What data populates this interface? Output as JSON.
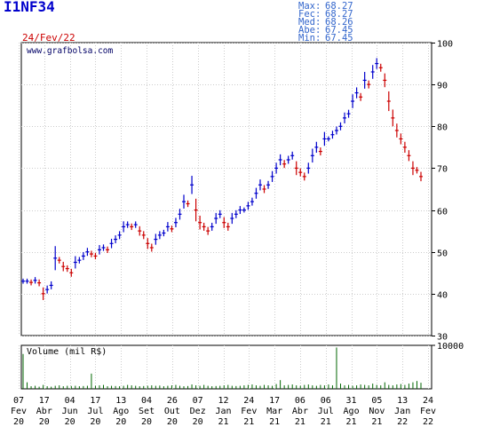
{
  "ticker": "I1NF34",
  "date": "24/Fev/22",
  "stats": [
    {
      "label": "Max:",
      "value": "68.27"
    },
    {
      "label": "Fec:",
      "value": "68.27"
    },
    {
      "label": "Med:",
      "value": "68.26"
    },
    {
      "label": "Abe:",
      "value": "67.45"
    },
    {
      "label": "Min:",
      "value": "67.45"
    }
  ],
  "watermark": "www.grafbolsa.com",
  "volume_label": "Volume (mil R$)",
  "colors": {
    "up": "#0000cc",
    "down": "#cc0000",
    "stats": "#3366cc",
    "grid": "#cccccc",
    "volume": "#006600"
  },
  "chart_data": [
    {
      "type": "ohlc",
      "title": "I1NF34",
      "ylim": [
        30,
        100
      ],
      "yticks": [
        30,
        40,
        50,
        60,
        70,
        80,
        90,
        100
      ],
      "grid": true,
      "x_ticks": [
        {
          "day": "07",
          "mon": "Fev",
          "yr": "20"
        },
        {
          "day": "17",
          "mon": "Abr",
          "yr": "20"
        },
        {
          "day": "04",
          "mon": "Jun",
          "yr": "20"
        },
        {
          "day": "17",
          "mon": "Jul",
          "yr": "20"
        },
        {
          "day": "13",
          "mon": "Ago",
          "yr": "20"
        },
        {
          "day": "04",
          "mon": "Set",
          "yr": "20"
        },
        {
          "day": "26",
          "mon": "Out",
          "yr": "20"
        },
        {
          "day": "07",
          "mon": "Dez",
          "yr": "20"
        },
        {
          "day": "12",
          "mon": "Jan",
          "yr": "21"
        },
        {
          "day": "24",
          "mon": "Fev",
          "yr": "21"
        },
        {
          "day": "17",
          "mon": "Mar",
          "yr": "21"
        },
        {
          "day": "06",
          "mon": "Abr",
          "yr": "21"
        },
        {
          "day": "06",
          "mon": "Jul",
          "yr": "21"
        },
        {
          "day": "31",
          "mon": "Ago",
          "yr": "21"
        },
        {
          "day": "05",
          "mon": "Nov",
          "yr": "21"
        },
        {
          "day": "13",
          "mon": "Jan",
          "yr": "22"
        },
        {
          "day": "24",
          "mon": "Fev",
          "yr": "22"
        }
      ],
      "close_series": [
        43,
        43,
        42.7,
        43.2,
        42.6,
        40,
        41,
        42,
        48.5,
        48,
        46.5,
        46,
        45,
        47.5,
        48,
        49,
        50,
        49.5,
        49,
        50.5,
        51,
        50.5,
        52,
        53,
        54,
        56,
        56.5,
        56,
        56.5,
        55,
        54,
        52,
        51,
        53,
        54,
        54.5,
        56,
        55.5,
        57,
        59,
        62,
        61.5,
        66,
        60,
        57,
        56,
        55,
        56,
        58,
        59,
        57,
        56,
        58,
        59,
        60,
        60,
        61,
        62,
        64,
        66,
        65,
        66,
        68,
        70,
        72,
        71,
        72,
        73,
        70,
        69,
        68,
        70,
        73,
        75,
        74,
        77,
        77,
        78,
        79,
        80,
        82,
        83,
        86,
        88,
        87,
        91,
        90,
        93,
        95,
        94,
        91,
        86,
        82,
        79,
        77,
        75,
        73,
        70,
        69.5,
        68
      ]
    },
    {
      "type": "bar",
      "title": "Volume (mil R$)",
      "ylim": [
        0,
        10000
      ],
      "yticks": [
        10000
      ],
      "values": [
        8000,
        1500,
        600,
        700,
        500,
        900,
        600,
        500,
        700,
        800,
        600,
        700,
        650,
        700,
        600,
        650,
        700,
        3500,
        700,
        800,
        900,
        600,
        700,
        650,
        600,
        700,
        900,
        800,
        700,
        600,
        650,
        700,
        800,
        700,
        750,
        600,
        700,
        800,
        900,
        700,
        600,
        650,
        1000,
        800,
        700,
        900,
        700,
        600,
        650,
        700,
        800,
        900,
        700,
        650,
        700,
        800,
        900,
        1000,
        800,
        700,
        900,
        800,
        700,
        1100,
        2000,
        800,
        900,
        1000,
        800,
        700,
        900,
        1000,
        800,
        700,
        900,
        800,
        1000,
        800,
        9500,
        1200,
        800,
        900,
        700,
        800,
        1000,
        900,
        800,
        1200,
        900,
        800,
        1500,
        900,
        800,
        1000,
        1100,
        900,
        1200,
        1500,
        1800,
        1400
      ]
    }
  ]
}
